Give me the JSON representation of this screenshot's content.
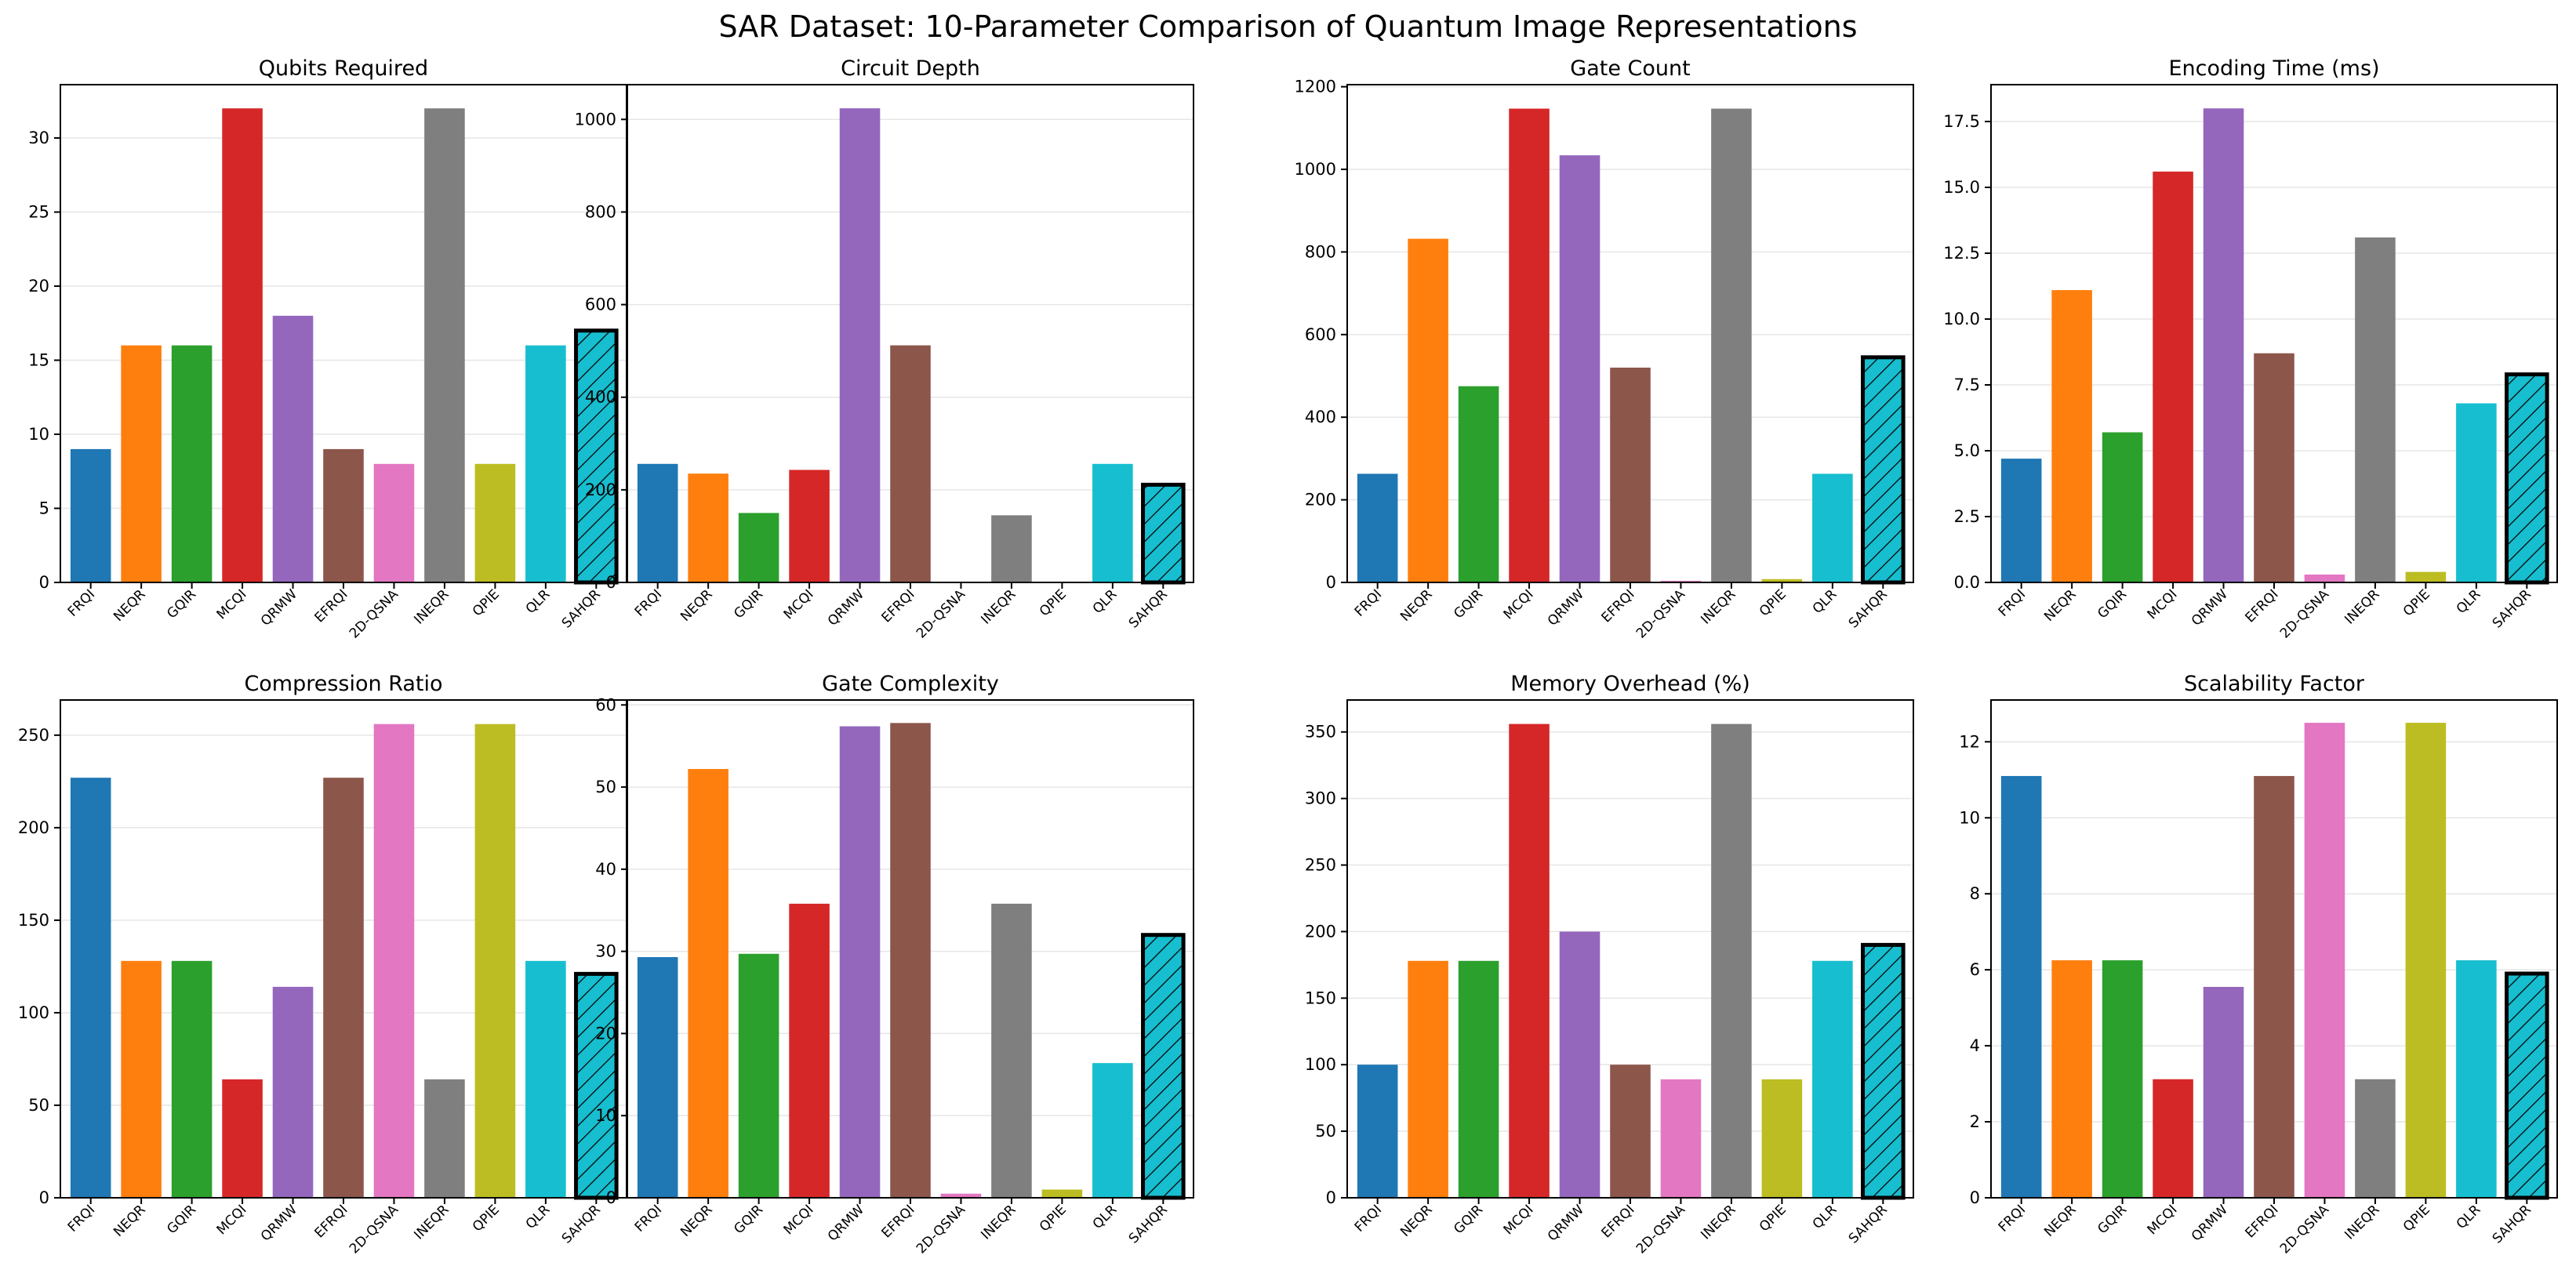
{
  "title": "SAR Dataset: 10-Parameter Comparison of Quantum Image Representations",
  "chart_data": [
    {
      "type": "bar",
      "title": "Qubits Required",
      "categories": [
        "FRQI",
        "NEQR",
        "GQIR",
        "MCQI",
        "QRMW",
        "EFRQI",
        "2D-QSNA",
        "INEQR",
        "QPIE",
        "QLR",
        "SAHQR"
      ],
      "values": [
        9,
        16,
        16,
        32,
        18,
        9,
        8,
        32,
        8,
        16,
        17
      ],
      "ylim": [
        0,
        33.6
      ],
      "yticks": [
        0,
        5,
        10,
        15,
        20,
        25,
        30
      ],
      "yticklabels": [
        "0",
        "5",
        "10",
        "15",
        "20",
        "25",
        "30"
      ],
      "grid": "y"
    },
    {
      "type": "bar",
      "title": "Circuit Depth",
      "categories": [
        "FRQI",
        "NEQR",
        "GQIR",
        "MCQI",
        "QRMW",
        "EFRQI",
        "2D-QSNA",
        "INEQR",
        "QPIE",
        "QLR",
        "SAHQR"
      ],
      "values": [
        256,
        235,
        150,
        243,
        1024,
        512,
        0,
        145,
        0,
        256,
        211
      ],
      "ylim": [
        0,
        1075
      ],
      "yticks": [
        0,
        200,
        400,
        600,
        800,
        1000
      ],
      "yticklabels": [
        "0",
        "200",
        "400",
        "600",
        "800",
        "1000"
      ],
      "grid": "y"
    },
    {
      "type": "bar",
      "title": "Gate Count",
      "categories": [
        "FRQI",
        "NEQR",
        "GQIR",
        "MCQI",
        "QRMW",
        "EFRQI",
        "2D-QSNA",
        "INEQR",
        "QPIE",
        "QLR",
        "SAHQR"
      ],
      "values": [
        263,
        832,
        475,
        1147,
        1034,
        520,
        4,
        1147,
        8,
        263,
        545
      ],
      "ylim": [
        0,
        1205
      ],
      "yticks": [
        0,
        200,
        400,
        600,
        800,
        1000,
        1200
      ],
      "yticklabels": [
        "0",
        "200",
        "400",
        "600",
        "800",
        "1000",
        "1200"
      ],
      "grid": "y"
    },
    {
      "type": "bar",
      "title": "Encoding Time (ms)",
      "categories": [
        "FRQI",
        "NEQR",
        "GQIR",
        "MCQI",
        "QRMW",
        "EFRQI",
        "2D-QSNA",
        "INEQR",
        "QPIE",
        "QLR",
        "SAHQR"
      ],
      "values": [
        4.7,
        11.1,
        5.7,
        15.6,
        18.0,
        8.7,
        0.3,
        13.1,
        0.4,
        6.8,
        7.9
      ],
      "ylim": [
        0,
        18.9
      ],
      "yticks": [
        0,
        2.5,
        5,
        7.5,
        10,
        12.5,
        15,
        17.5
      ],
      "yticklabels": [
        "0.0",
        "2.5",
        "5.0",
        "7.5",
        "10.0",
        "12.5",
        "15.0",
        "17.5"
      ],
      "grid": "y"
    },
    {
      "type": "bar",
      "title": "Compression Ratio",
      "categories": [
        "FRQI",
        "NEQR",
        "GQIR",
        "MCQI",
        "QRMW",
        "EFRQI",
        "2D-QSNA",
        "INEQR",
        "QPIE",
        "QLR",
        "SAHQR"
      ],
      "values": [
        227,
        128,
        128,
        64,
        114,
        227,
        256,
        64,
        256,
        128,
        121
      ],
      "ylim": [
        0,
        269
      ],
      "yticks": [
        0,
        50,
        100,
        150,
        200,
        250
      ],
      "yticklabels": [
        "0",
        "50",
        "100",
        "150",
        "200",
        "250"
      ],
      "grid": "y"
    },
    {
      "type": "bar",
      "title": "Gate Complexity",
      "categories": [
        "FRQI",
        "NEQR",
        "GQIR",
        "MCQI",
        "QRMW",
        "EFRQI",
        "2D-QSNA",
        "INEQR",
        "QPIE",
        "QLR",
        "SAHQR"
      ],
      "values": [
        29.3,
        52.2,
        29.7,
        35.8,
        57.4,
        57.8,
        0.5,
        35.8,
        1.0,
        16.4,
        32.0
      ],
      "ylim": [
        0,
        60.6
      ],
      "yticks": [
        0,
        10,
        20,
        30,
        40,
        50,
        60
      ],
      "yticklabels": [
        "0",
        "10",
        "20",
        "30",
        "40",
        "50",
        "60"
      ],
      "grid": "y"
    },
    {
      "type": "bar",
      "title": "Memory Overhead (%)",
      "categories": [
        "FRQI",
        "NEQR",
        "GQIR",
        "MCQI",
        "QRMW",
        "EFRQI",
        "2D-QSNA",
        "INEQR",
        "QPIE",
        "QLR",
        "SAHQR"
      ],
      "values": [
        100,
        178,
        178,
        356,
        200,
        100,
        89,
        356,
        89,
        178,
        190
      ],
      "ylim": [
        0,
        374
      ],
      "yticks": [
        0,
        50,
        100,
        150,
        200,
        250,
        300,
        350
      ],
      "yticklabels": [
        "0",
        "50",
        "100",
        "150",
        "200",
        "250",
        "300",
        "350"
      ],
      "grid": "y"
    },
    {
      "type": "bar",
      "title": "Scalability Factor",
      "categories": [
        "FRQI",
        "NEQR",
        "GQIR",
        "MCQI",
        "QRMW",
        "EFRQI",
        "2D-QSNA",
        "INEQR",
        "QPIE",
        "QLR",
        "SAHQR"
      ],
      "values": [
        11.1,
        6.25,
        6.25,
        3.12,
        5.55,
        11.1,
        12.5,
        3.12,
        12.5,
        6.25,
        5.9
      ],
      "ylim": [
        0,
        13.1
      ],
      "yticks": [
        0,
        2,
        4,
        6,
        8,
        10,
        12
      ],
      "yticklabels": [
        "0",
        "2",
        "4",
        "6",
        "8",
        "10",
        "12"
      ],
      "grid": "y"
    }
  ],
  "colors": [
    "#1f77b4",
    "#ff7f0e",
    "#2ca02c",
    "#d62728",
    "#9467bd",
    "#8c564b",
    "#e377c2",
    "#7f7f7f",
    "#bcbd22",
    "#17becf",
    "#17becf"
  ],
  "highlight_category": "SAHQR",
  "highlight_style": "hatched with black outline"
}
